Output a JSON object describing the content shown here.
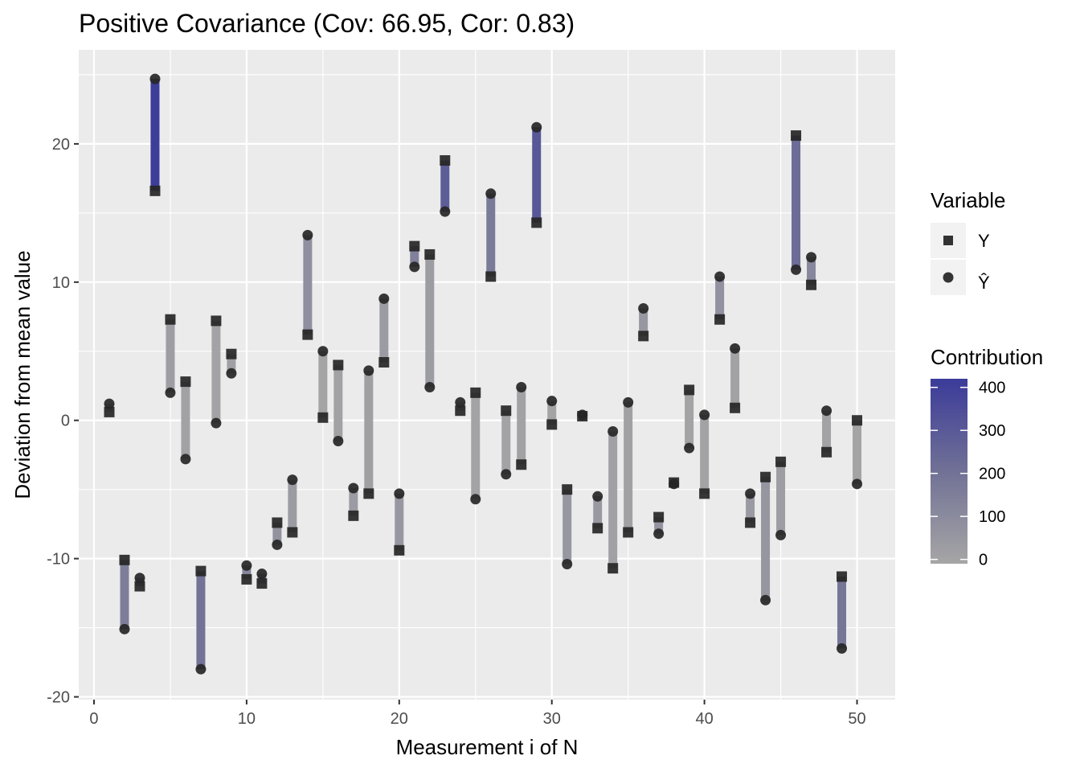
{
  "chart_data": {
    "type": "scatter",
    "title": "Positive Covariance (Cov: 66.95, Cor: 0.83)",
    "xlabel": "Measurement i of N",
    "ylabel": "Deviation from mean value",
    "xlim": [
      -1,
      52.5
    ],
    "ylim": [
      -20.2,
      26.8
    ],
    "x_ticks": [
      0,
      10,
      20,
      30,
      40,
      50
    ],
    "y_ticks": [
      -20,
      -10,
      0,
      10,
      20
    ],
    "grid": true,
    "legend_variable": {
      "title": "Variable",
      "entries": [
        {
          "label": "Y",
          "shape": "square"
        },
        {
          "label": "Ŷ",
          "shape": "circle"
        }
      ]
    },
    "legend_contribution": {
      "title": "Contribution",
      "min": -10,
      "max": 420,
      "low_color": "#a6a6a6",
      "high_color": "#3b3b9a",
      "ticks": [
        0,
        100,
        200,
        300,
        400
      ]
    },
    "series": [
      {
        "name": "Y",
        "x": [
          1,
          2,
          3,
          4,
          5,
          6,
          7,
          8,
          9,
          10,
          11,
          12,
          13,
          14,
          15,
          16,
          17,
          18,
          19,
          20,
          21,
          22,
          23,
          24,
          25,
          26,
          27,
          28,
          29,
          30,
          31,
          32,
          33,
          34,
          35,
          36,
          37,
          38,
          39,
          40,
          41,
          42,
          43,
          44,
          45,
          46,
          47,
          48,
          49,
          50
        ],
        "values": [
          0.6,
          -10.1,
          -12.0,
          16.6,
          7.3,
          2.8,
          -10.9,
          7.2,
          4.8,
          -11.5,
          -11.8,
          -7.4,
          -8.1,
          6.2,
          0.2,
          4.0,
          -6.9,
          -5.3,
          4.2,
          -9.4,
          12.6,
          12.0,
          18.8,
          0.7,
          2.0,
          10.4,
          0.7,
          -3.2,
          14.3,
          -0.3,
          -5.0,
          0.3,
          -7.8,
          -10.7,
          -8.1,
          6.1,
          -7.0,
          -4.5,
          2.2,
          -5.3,
          7.3,
          0.9,
          -7.4,
          -4.1,
          -3.0,
          20.6,
          9.8,
          -2.3,
          -11.3,
          0.0
        ]
      },
      {
        "name": "Ŷ",
        "x": [
          1,
          2,
          3,
          4,
          5,
          6,
          7,
          8,
          9,
          10,
          11,
          12,
          13,
          14,
          15,
          16,
          17,
          18,
          19,
          20,
          21,
          22,
          23,
          24,
          25,
          26,
          27,
          28,
          29,
          30,
          31,
          32,
          33,
          34,
          35,
          36,
          37,
          38,
          39,
          40,
          41,
          42,
          43,
          44,
          45,
          46,
          47,
          48,
          49,
          50
        ],
        "values": [
          1.2,
          -15.1,
          -11.4,
          24.7,
          2.0,
          -2.8,
          -18.0,
          -0.2,
          3.4,
          -10.5,
          -11.1,
          -9.0,
          -4.3,
          13.4,
          5.0,
          -1.5,
          -4.9,
          3.6,
          8.8,
          -5.3,
          11.1,
          2.4,
          15.1,
          1.3,
          -5.7,
          16.4,
          -3.9,
          2.4,
          21.2,
          1.4,
          -10.4,
          0.4,
          -5.5,
          -0.8,
          1.3,
          8.1,
          -8.2,
          -4.6,
          -2.0,
          0.4,
          10.4,
          5.2,
          -5.3,
          -13.0,
          -8.3,
          10.9,
          11.8,
          0.7,
          -16.5,
          -4.6
        ]
      }
    ],
    "contribution": [
      1,
      152,
      137,
      412,
      25,
      8,
      197,
      1,
      16,
      121,
      131,
      67,
      35,
      83,
      0,
      6,
      34,
      19,
      36,
      50,
      140,
      29,
      284,
      1,
      4,
      170,
      3,
      8,
      303,
      0,
      52,
      0,
      43,
      9,
      11,
      49,
      57,
      21,
      4,
      2,
      76,
      5,
      39,
      53,
      25,
      224,
      116,
      2,
      186,
      0
    ]
  }
}
